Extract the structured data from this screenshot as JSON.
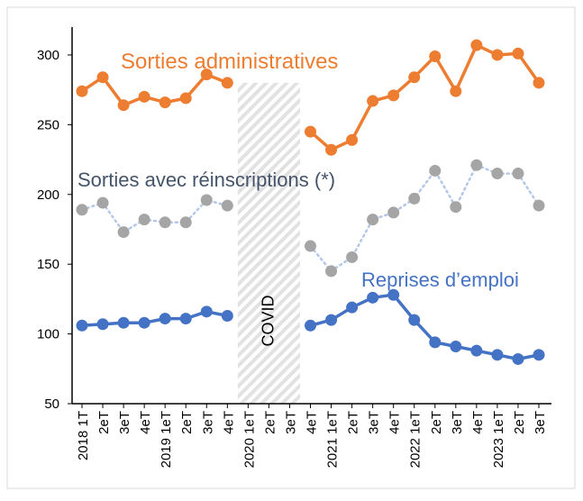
{
  "chart_data": {
    "type": "line",
    "title": "",
    "xlabel": "",
    "ylabel": "",
    "ylim": [
      50,
      320
    ],
    "yticks": [
      50,
      100,
      150,
      200,
      250,
      300
    ],
    "categories": [
      "2018 1T",
      "2eT",
      "3eT",
      "4eT",
      "2019 1eT",
      "2eT",
      "3eT",
      "4eT",
      "2020 1eT",
      "2eT",
      "3eT",
      "4eT",
      "2021 1eT",
      "2eT",
      "3eT",
      "4eT",
      "2022 1eT",
      "2eT",
      "3eT",
      "4eT",
      "2023 1eT",
      "2eT",
      "3eT"
    ],
    "series": [
      {
        "name": "Sorties administratives",
        "color": "#ED7D31",
        "style": "solid",
        "values": [
          274,
          284,
          264,
          270,
          266,
          269,
          286,
          280,
          null,
          null,
          null,
          245,
          232,
          239,
          267,
          271,
          284,
          299,
          274,
          307,
          300,
          301,
          280
        ]
      },
      {
        "name": "Sorties avec réinscriptions (*)",
        "color": "#A5A5A5",
        "style": "dotted",
        "values": [
          189,
          194,
          173,
          182,
          180,
          180,
          196,
          192,
          null,
          null,
          null,
          163,
          145,
          155,
          182,
          187,
          197,
          217,
          191,
          221,
          215,
          215,
          192
        ]
      },
      {
        "name": "Reprises d’emploi",
        "color": "#4472C4",
        "style": "solid",
        "values": [
          106,
          107,
          108,
          108,
          111,
          111,
          116,
          113,
          null,
          null,
          null,
          106,
          110,
          119,
          126,
          128,
          110,
          94,
          91,
          88,
          85,
          82,
          85
        ]
      }
    ],
    "annotations": {
      "covid_label": "COVID",
      "covid_range": [
        "2020 1eT",
        "3eT"
      ]
    }
  }
}
